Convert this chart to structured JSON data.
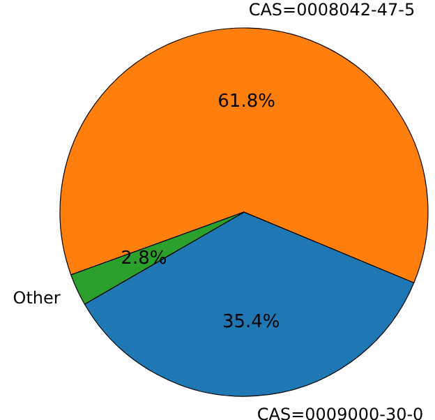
{
  "chart_data": {
    "type": "pie",
    "categories": [
      "CAS=0009000-30-0",
      "CAS=0008042-47-5",
      "Other"
    ],
    "values": [
      35.4,
      61.8,
      2.8
    ],
    "colors": [
      "#1f77b4",
      "#ff7f0e",
      "#2ca02c"
    ],
    "value_labels": [
      "35.4%",
      "61.8%",
      "2.8%"
    ]
  }
}
